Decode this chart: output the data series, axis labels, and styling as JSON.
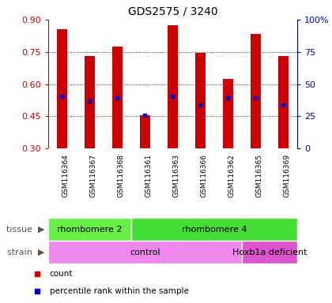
{
  "title": "GDS2575 / 3240",
  "samples": [
    "GSM116364",
    "GSM116367",
    "GSM116368",
    "GSM116361",
    "GSM116363",
    "GSM116366",
    "GSM116362",
    "GSM116365",
    "GSM116369"
  ],
  "bar_heights": [
    0.855,
    0.73,
    0.775,
    0.455,
    0.875,
    0.745,
    0.625,
    0.835,
    0.73
  ],
  "blue_dots": [
    0.545,
    0.523,
    0.535,
    0.455,
    0.545,
    0.503,
    0.535,
    0.535,
    0.503
  ],
  "bar_bottom": 0.3,
  "ylim": [
    0.3,
    0.9
  ],
  "right_ylim": [
    0,
    100
  ],
  "right_yticks": [
    0,
    25,
    50,
    75,
    100
  ],
  "right_yticklabels": [
    "0",
    "25",
    "50",
    "75",
    "100%"
  ],
  "left_yticks": [
    0.3,
    0.45,
    0.6,
    0.75,
    0.9
  ],
  "grid_yvals": [
    0.45,
    0.6,
    0.75
  ],
  "bar_color": "#cc0000",
  "dot_color": "#0000cc",
  "tissue_groups": [
    {
      "label": "rhombomere 2",
      "start": 0,
      "end": 3,
      "color": "#66ee44"
    },
    {
      "label": "rhombomere 4",
      "start": 3,
      "end": 9,
      "color": "#44dd33"
    }
  ],
  "strain_groups": [
    {
      "label": "control",
      "start": 0,
      "end": 7,
      "color": "#ee88ee"
    },
    {
      "label": "Hoxb1a deficient",
      "start": 7,
      "end": 9,
      "color": "#dd55cc"
    }
  ],
  "sample_bg": "#cccccc",
  "plot_bg": "#ffffff",
  "legend_items": [
    {
      "color": "#cc0000",
      "label": "count"
    },
    {
      "color": "#0000cc",
      "label": "percentile rank within the sample"
    }
  ]
}
